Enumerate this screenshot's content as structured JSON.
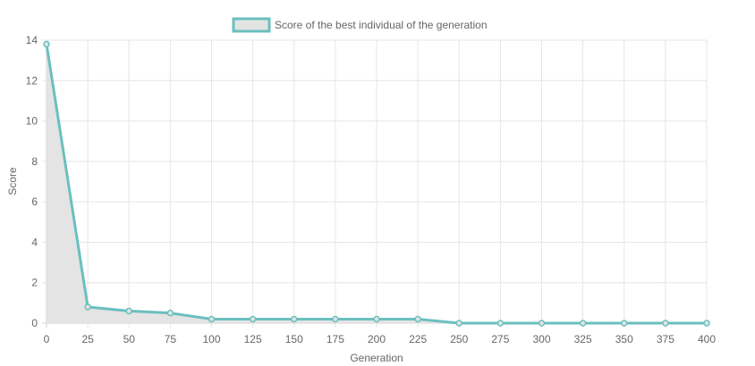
{
  "chart_data": {
    "type": "line",
    "legend": {
      "label": "Score of the best individual of the generation",
      "position": "top-center",
      "border_color": "#6bbfbf",
      "fill_color": "#e3e3e3"
    },
    "xlabel": "Generation",
    "ylabel": "Score",
    "x_ticks": [
      0,
      25,
      50,
      75,
      100,
      125,
      150,
      175,
      200,
      225,
      250,
      275,
      300,
      325,
      350,
      375,
      400
    ],
    "y_ticks": [
      0,
      2,
      4,
      6,
      8,
      10,
      12,
      14
    ],
    "xlim": [
      0,
      400
    ],
    "ylim": [
      0,
      14
    ],
    "grid": true,
    "series": [
      {
        "name": "Score of the best individual of the generation",
        "x": [
          0,
          25,
          50,
          75,
          100,
          125,
          150,
          175,
          200,
          225,
          250,
          275,
          300,
          325,
          350,
          375,
          400
        ],
        "values": [
          13.8,
          0.8,
          0.6,
          0.5,
          0.2,
          0.2,
          0.2,
          0.2,
          0.2,
          0.2,
          0,
          0,
          0,
          0,
          0,
          0,
          0
        ],
        "line_color": "#6bbfbf",
        "fill_color": "#e3e3e3"
      }
    ]
  }
}
